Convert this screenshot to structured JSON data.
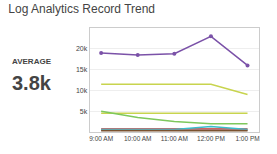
{
  "chart_data": {
    "type": "line",
    "title": "Log Analytics Record Trend",
    "categories": [
      "9:00 AM",
      "10:00 AM",
      "11:00 AM",
      "12:00 PM",
      "1:00 PM"
    ],
    "series": [
      {
        "color": "#7b52a8",
        "marker": "circle",
        "values": [
          19000,
          18500,
          18800,
          23000,
          16000
        ]
      },
      {
        "color": "#c8d44e",
        "values": [
          11500,
          11500,
          11500,
          11500,
          9000
        ]
      },
      {
        "color": "#c8d44e",
        "values": [
          4500,
          4500,
          4500,
          4500,
          4500
        ]
      },
      {
        "color": "#7ec85c",
        "values": [
          5000,
          3500,
          2500,
          2000,
          2000
        ]
      },
      {
        "color": "#c03030",
        "values": [
          700,
          700,
          700,
          700,
          700
        ]
      },
      {
        "color": "#3abecc",
        "values": [
          600,
          600,
          600,
          1300,
          600
        ]
      },
      {
        "color": "#888888",
        "values": [
          400,
          400,
          400,
          400,
          400
        ]
      },
      {
        "color": "#7a5230",
        "values": [
          300,
          300,
          300,
          300,
          300
        ]
      }
    ],
    "ylim": [
      0,
      25000
    ],
    "yticks": [
      {
        "value": 5000,
        "label": "5k"
      },
      {
        "value": 10000,
        "label": "10k"
      },
      {
        "value": 15000,
        "label": "15k"
      },
      {
        "value": 20000,
        "label": "20k"
      }
    ],
    "grid": true,
    "annotations": [
      "AVERAGE",
      "3.8k"
    ]
  }
}
